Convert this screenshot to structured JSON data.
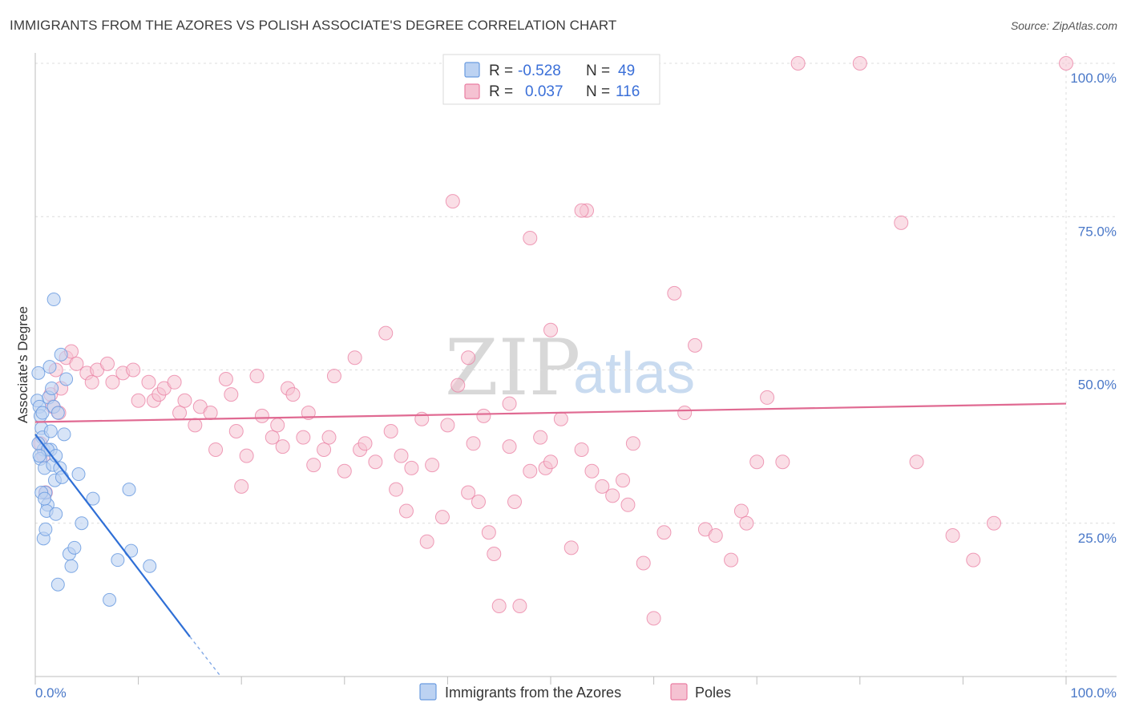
{
  "title": "IMMIGRANTS FROM THE AZORES VS POLISH ASSOCIATE'S DEGREE CORRELATION CHART",
  "source": "Source: ZipAtlas.com",
  "watermark": {
    "zip": "ZIP",
    "atlas": "atlas"
  },
  "colors": {
    "blue": "#6a9be0",
    "blue_fill": "#bcd2f2",
    "pink": "#e97ea2",
    "pink_fill": "#f5c2d2",
    "blue_line": "#2f6fd6",
    "pink_line": "#e06a92",
    "tick_text": "#4a78c8"
  },
  "chart_data": {
    "type": "scatter",
    "title": "IMMIGRANTS FROM THE AZORES VS POLISH ASSOCIATE'S DEGREE CORRELATION CHART",
    "xlabel": "",
    "ylabel": "Associate's Degree",
    "xlim": [
      0,
      100
    ],
    "ylim": [
      0,
      100
    ],
    "x_tick_labels": [
      "0.0%",
      "100.0%"
    ],
    "y_ticks": [
      {
        "value": 25,
        "label": "25.0%"
      },
      {
        "value": 50,
        "label": "50.0%"
      },
      {
        "value": 75,
        "label": "75.0%"
      },
      {
        "value": 100,
        "label": "100.0%"
      }
    ],
    "legend_stats": [
      {
        "r_label": "R =",
        "r": "-0.528",
        "n_label": "N =",
        "n": "49"
      },
      {
        "r_label": "R =",
        "r": "0.037",
        "n_label": "N =",
        "n": "116"
      }
    ],
    "series": [
      {
        "name": "Immigrants from the Azores",
        "color": "#6a9be0",
        "trend": {
          "x0": 0,
          "y0": 39.5,
          "x1": 15,
          "y1": 6.5,
          "dash_to_x": 18,
          "dash_to_y": 0
        },
        "points": [
          [
            0.2,
            45
          ],
          [
            0.4,
            44
          ],
          [
            0.3,
            49.5
          ],
          [
            0.5,
            42.5
          ],
          [
            0.6,
            40.5
          ],
          [
            0.7,
            39
          ],
          [
            0.8,
            37
          ],
          [
            0.5,
            35.5
          ],
          [
            0.9,
            34
          ],
          [
            1.0,
            30
          ],
          [
            0.6,
            30
          ],
          [
            1.2,
            28
          ],
          [
            1.1,
            27
          ],
          [
            0.8,
            22.5
          ],
          [
            1.3,
            45.5
          ],
          [
            1.4,
            50.5
          ],
          [
            1.6,
            47
          ],
          [
            1.8,
            44
          ],
          [
            1.5,
            37
          ],
          [
            1.7,
            34.5
          ],
          [
            1.9,
            32
          ],
          [
            2.0,
            26.5
          ],
          [
            1.8,
            61.5
          ],
          [
            2.2,
            43
          ],
          [
            2.4,
            34
          ],
          [
            2.6,
            32.5
          ],
          [
            2.8,
            39.5
          ],
          [
            3.0,
            48.5
          ],
          [
            2.5,
            52.5
          ],
          [
            3.3,
            20
          ],
          [
            3.5,
            18
          ],
          [
            4.2,
            33
          ],
          [
            4.5,
            25
          ],
          [
            5.6,
            29
          ],
          [
            7.2,
            12.5
          ],
          [
            8.0,
            19
          ],
          [
            9.1,
            30.5
          ],
          [
            9.3,
            20.5
          ],
          [
            11.1,
            18
          ],
          [
            0.3,
            38
          ],
          [
            0.9,
            29
          ],
          [
            1.2,
            37
          ],
          [
            2.2,
            15
          ],
          [
            3.8,
            21
          ],
          [
            1.0,
            24
          ],
          [
            0.4,
            36
          ],
          [
            2.0,
            36
          ],
          [
            1.5,
            40
          ],
          [
            0.7,
            43
          ]
        ]
      },
      {
        "name": "Poles",
        "color": "#e97ea2",
        "trend": {
          "x0": 0,
          "y0": 41.5,
          "x1": 100,
          "y1": 44.5
        },
        "points": [
          [
            0.5,
            38
          ],
          [
            0.8,
            36
          ],
          [
            1.0,
            30
          ],
          [
            1.5,
            46
          ],
          [
            1.7,
            44
          ],
          [
            2.0,
            50
          ],
          [
            2.3,
            43
          ],
          [
            2.5,
            47
          ],
          [
            3.0,
            52
          ],
          [
            3.5,
            53
          ],
          [
            4.0,
            51
          ],
          [
            5.0,
            49.5
          ],
          [
            5.5,
            48
          ],
          [
            6.0,
            50
          ],
          [
            7.0,
            51
          ],
          [
            7.5,
            48
          ],
          [
            8.5,
            49.5
          ],
          [
            9.5,
            50
          ],
          [
            10.0,
            45
          ],
          [
            11.0,
            48
          ],
          [
            11.5,
            45
          ],
          [
            12.0,
            46
          ],
          [
            12.5,
            47
          ],
          [
            13.5,
            48
          ],
          [
            14.0,
            43
          ],
          [
            14.5,
            45
          ],
          [
            15.5,
            41
          ],
          [
            16.0,
            44
          ],
          [
            17.0,
            43
          ],
          [
            17.5,
            37
          ],
          [
            18.5,
            48.5
          ],
          [
            19.0,
            46
          ],
          [
            19.5,
            40
          ],
          [
            20.0,
            31
          ],
          [
            20.5,
            36
          ],
          [
            21.5,
            49
          ],
          [
            22.0,
            42.5
          ],
          [
            23.0,
            39
          ],
          [
            23.5,
            41
          ],
          [
            24.0,
            37.5
          ],
          [
            24.5,
            47
          ],
          [
            25.0,
            46
          ],
          [
            26.0,
            39
          ],
          [
            26.5,
            43
          ],
          [
            27.0,
            34.5
          ],
          [
            28.0,
            37
          ],
          [
            28.5,
            39
          ],
          [
            29.0,
            49
          ],
          [
            30.0,
            33.5
          ],
          [
            31.0,
            52
          ],
          [
            31.5,
            37
          ],
          [
            32.0,
            38
          ],
          [
            33.0,
            35
          ],
          [
            34.0,
            56
          ],
          [
            34.5,
            40
          ],
          [
            35.0,
            30.5
          ],
          [
            35.5,
            36
          ],
          [
            36.0,
            27
          ],
          [
            36.5,
            34
          ],
          [
            37.5,
            42
          ],
          [
            38.0,
            22
          ],
          [
            38.5,
            34.5
          ],
          [
            39.5,
            26
          ],
          [
            40.0,
            41
          ],
          [
            41.0,
            47.5
          ],
          [
            42.0,
            30
          ],
          [
            42.5,
            38
          ],
          [
            43.0,
            28.5
          ],
          [
            43.5,
            42.5
          ],
          [
            44.0,
            23.5
          ],
          [
            44.5,
            20
          ],
          [
            45.0,
            11.5
          ],
          [
            46.0,
            37.5
          ],
          [
            46.5,
            28.5
          ],
          [
            47.0,
            11.5
          ],
          [
            48.0,
            33.5
          ],
          [
            49.0,
            39
          ],
          [
            49.5,
            34
          ],
          [
            50.0,
            35
          ],
          [
            51.0,
            42
          ],
          [
            52.0,
            21
          ],
          [
            53.0,
            37
          ],
          [
            53.5,
            76
          ],
          [
            54.0,
            33.5
          ],
          [
            55.0,
            31
          ],
          [
            56.0,
            29.5
          ],
          [
            57.0,
            32
          ],
          [
            57.5,
            28
          ],
          [
            58.0,
            38
          ],
          [
            59.0,
            18.5
          ],
          [
            60.0,
            9.5
          ],
          [
            61.0,
            23.5
          ],
          [
            62.0,
            62.5
          ],
          [
            63.0,
            43
          ],
          [
            64.0,
            54
          ],
          [
            65.0,
            24
          ],
          [
            66.0,
            23
          ],
          [
            67.5,
            19
          ],
          [
            68.5,
            27
          ],
          [
            69.0,
            25
          ],
          [
            70.0,
            35
          ],
          [
            71.0,
            45.5
          ],
          [
            72.5,
            35
          ],
          [
            74.0,
            100
          ],
          [
            80.0,
            100
          ],
          [
            84.0,
            74
          ],
          [
            85.5,
            35
          ],
          [
            89.0,
            23
          ],
          [
            91.0,
            19
          ],
          [
            93.0,
            25
          ],
          [
            100.0,
            100
          ],
          [
            40.5,
            77.5
          ],
          [
            48.0,
            71.5
          ],
          [
            53.0,
            76
          ],
          [
            50.0,
            56.5
          ],
          [
            42.0,
            52
          ],
          [
            46.0,
            44.5
          ]
        ]
      }
    ]
  },
  "bottom_legend": [
    {
      "label": "Immigrants from the Azores"
    },
    {
      "label": "Poles"
    }
  ]
}
